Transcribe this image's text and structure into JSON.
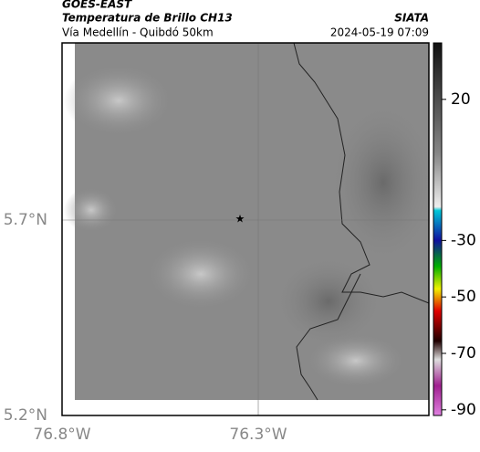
{
  "header": {
    "source": "GOES-EAST",
    "title": "Temperatura de Brillo CH13",
    "subtitle": "Vía Medellín - Quibdó 50km",
    "org": "SIATA",
    "datetime": "2024-05-19 07:09"
  },
  "map": {
    "lat_labels": [
      "5.7°N",
      "5.2°N"
    ],
    "lon_labels": [
      "76.8°W",
      "76.3°W"
    ]
  },
  "colorbar": {
    "range": [
      40,
      -92
    ],
    "ticks": [
      20,
      -30,
      -50,
      -70,
      -90
    ]
  }
}
